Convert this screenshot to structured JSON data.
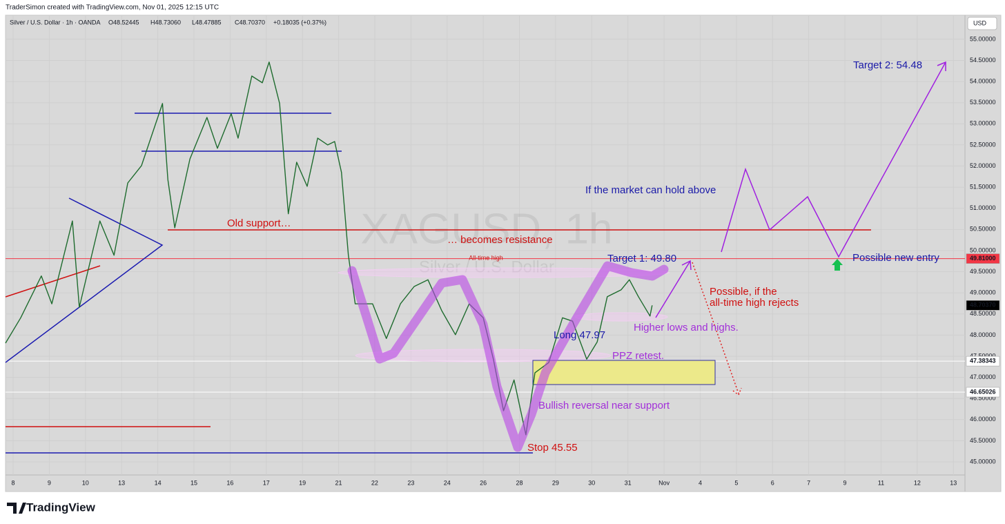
{
  "header": "TraderSimon created with TradingView.com, Nov 01, 2025 12:15 UTC",
  "footer": "TradingView",
  "chart_data": {
    "type": "line",
    "title": "Silver / U.S. Dollar · 1h · OANDA",
    "ohlc": [
      "O48.52445",
      "H48.73060",
      "L48.47885",
      "C48.70370",
      "+0.18035 (+0.37%)"
    ],
    "watermark": "XAGUSD, 1h",
    "watermark_sub": "Silver / U.S. Dollar",
    "currency": "USD",
    "color": "#1e6b2e",
    "x": [
      -0.21,
      0.21,
      0.78,
      1.07,
      1.64,
      1.83,
      2.4,
      2.79,
      3.17,
      3.55,
      4.13,
      4.28,
      4.47,
      4.89,
      5.36,
      5.65,
      6.03,
      6.22,
      6.6,
      6.89,
      7.08,
      7.37,
      7.61,
      7.84,
      8.13,
      8.42,
      8.7,
      8.89,
      9.08,
      9.27,
      9.46,
      9.94,
      10.32,
      10.71,
      11.09,
      11.47,
      11.85,
      12.23,
      12.61,
      13.0,
      13.28,
      13.56,
      13.85,
      14.18,
      14.43,
      14.81,
      15.19,
      15.47,
      15.86,
      16.15,
      16.43,
      16.81,
      17.04,
      17.29,
      17.61,
      17.67
    ],
    "values": [
      47.81,
      48.41,
      49.4,
      48.74,
      50.7,
      48.66,
      50.7,
      49.89,
      51.6,
      52.01,
      53.48,
      51.68,
      50.54,
      52.17,
      53.15,
      52.42,
      53.24,
      52.66,
      54.13,
      53.97,
      54.46,
      53.48,
      50.87,
      52.09,
      51.52,
      52.66,
      52.5,
      52.58,
      51.85,
      49.89,
      48.74,
      48.74,
      47.92,
      48.74,
      49.15,
      49.31,
      48.58,
      48.01,
      48.74,
      48.41,
      47.43,
      46.21,
      46.94,
      45.64,
      47.11,
      47.35,
      48.41,
      48.33,
      47.43,
      47.84,
      48.91,
      49.07,
      49.31,
      48.91,
      48.45,
      48.7037
    ],
    "xlim": [
      -0.21,
      26.32
    ],
    "ylim": [
      44.69,
      55.57
    ],
    "grid": true,
    "xticks": [
      {
        "value": 0,
        "label": "8"
      },
      {
        "value": 1,
        "label": "9"
      },
      {
        "value": 2,
        "label": "10"
      },
      {
        "value": 3,
        "label": "13"
      },
      {
        "value": 4,
        "label": "14"
      },
      {
        "value": 5,
        "label": "15"
      },
      {
        "value": 6,
        "label": "16"
      },
      {
        "value": 7,
        "label": "17"
      },
      {
        "value": 8,
        "label": "19"
      },
      {
        "value": 9,
        "label": "21"
      },
      {
        "value": 10,
        "label": "22"
      },
      {
        "value": 11,
        "label": "23"
      },
      {
        "value": 12,
        "label": "24"
      },
      {
        "value": 13,
        "label": "26"
      },
      {
        "value": 14,
        "label": "28"
      },
      {
        "value": 15,
        "label": "29"
      },
      {
        "value": 16,
        "label": "30"
      },
      {
        "value": 17,
        "label": "31"
      },
      {
        "value": 18,
        "label": "Nov"
      },
      {
        "value": 19,
        "label": "4"
      },
      {
        "value": 20,
        "label": "5"
      },
      {
        "value": 21,
        "label": "6"
      },
      {
        "value": 22,
        "label": "7"
      },
      {
        "value": 23,
        "label": "9"
      },
      {
        "value": 24,
        "label": "11"
      },
      {
        "value": 25,
        "label": "12"
      },
      {
        "value": 26,
        "label": "13"
      }
    ],
    "yticks": [
      {
        "value": 45,
        "label": "45.00000"
      },
      {
        "value": 45.5,
        "label": "45.50000"
      },
      {
        "value": 46,
        "label": "46.00000"
      },
      {
        "value": 46.5,
        "label": "46.50000"
      },
      {
        "value": 47,
        "label": "47.00000"
      },
      {
        "value": 47.5,
        "label": "47.50000"
      },
      {
        "value": 48,
        "label": "48.00000"
      },
      {
        "value": 48.5,
        "label": "48.50000"
      },
      {
        "value": 49,
        "label": "49.00000"
      },
      {
        "value": 49.5,
        "label": "49.50000"
      },
      {
        "value": 50,
        "label": "50.00000"
      },
      {
        "value": 50.5,
        "label": "50.50000"
      },
      {
        "value": 51,
        "label": "51.00000"
      },
      {
        "value": 51.5,
        "label": "51.50000"
      },
      {
        "value": 52,
        "label": "52.00000"
      },
      {
        "value": 52.5,
        "label": "52.50000"
      },
      {
        "value": 53,
        "label": "53.00000"
      },
      {
        "value": 53.5,
        "label": "53.50000"
      },
      {
        "value": 54,
        "label": "54.00000"
      },
      {
        "value": 54.5,
        "label": "54.50000"
      },
      {
        "value": 55,
        "label": "55.00000"
      }
    ],
    "price_levels": [
      {
        "value": 49.81,
        "label": "49.81000",
        "color": "#f23645",
        "line": true,
        "text_color": "#ffffff"
      },
      {
        "value": 48.7037,
        "label": "48.70370",
        "color": "#000000",
        "line": false,
        "text_color": "#ffffff"
      },
      {
        "value": 47.38343,
        "label": "47.38343",
        "color": "#ffffff",
        "line": true,
        "text_color": "#000000"
      },
      {
        "value": 46.65026,
        "label": "46.65026",
        "color": "#ffffff",
        "line": true,
        "text_color": "#000000"
      }
    ],
    "annotations": [
      "Old support…",
      "… becomes resistance",
      "All-time high",
      "Target 1: 49.80",
      "Target 2: 54.48",
      "If the market can hold above",
      "Possible new entry",
      "Possible, if the",
      "all-time high rejects",
      "Higher lows and highs.",
      "Long 47.97",
      "PPZ retest.",
      "Bullish reversal near support",
      "Stop 45.55"
    ]
  }
}
